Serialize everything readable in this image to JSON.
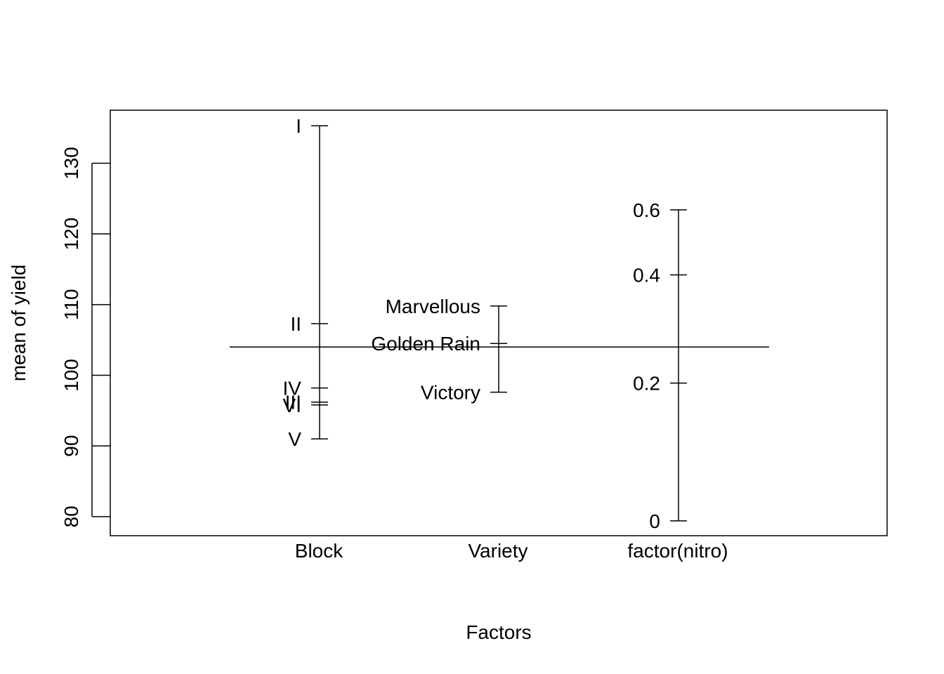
{
  "chart_data": {
    "type": "factor-means",
    "xlabel": "Factors",
    "ylabel": "mean of yield",
    "ylim": [
      77.3,
      137.5
    ],
    "y_ticks": [
      80,
      90,
      100,
      110,
      120,
      130
    ],
    "grand_mean": 104,
    "factors": [
      {
        "name": "Block",
        "levels": [
          {
            "label": "I",
            "value": 135.3
          },
          {
            "label": "II",
            "value": 107.3
          },
          {
            "label": "IV",
            "value": 98.2
          },
          {
            "label": "III",
            "value": 96.2
          },
          {
            "label": "VI",
            "value": 95.8
          },
          {
            "label": "V",
            "value": 91.0
          }
        ]
      },
      {
        "name": "Variety",
        "levels": [
          {
            "label": "Marvellous",
            "value": 109.8
          },
          {
            "label": "Golden Rain",
            "value": 104.5
          },
          {
            "label": "Victory",
            "value": 97.6
          }
        ]
      },
      {
        "name": "factor(nitro)",
        "levels": [
          {
            "label": "0.6",
            "value": 123.4
          },
          {
            "label": "0.4",
            "value": 114.2
          },
          {
            "label": "0.2",
            "value": 98.9
          },
          {
            "label": "0",
            "value": 79.4
          }
        ]
      }
    ]
  }
}
